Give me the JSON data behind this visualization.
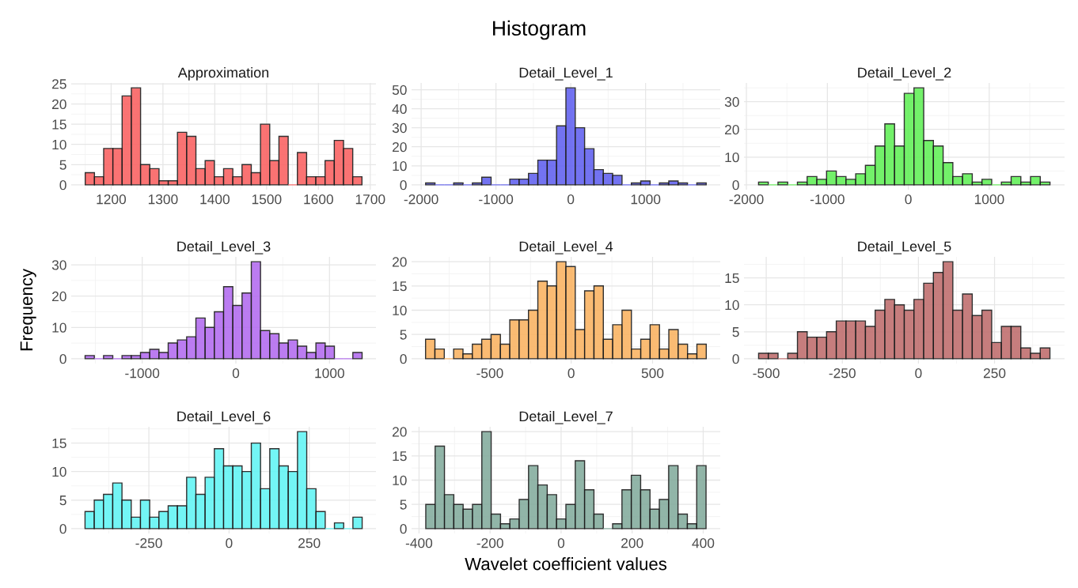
{
  "chart_data": [
    {
      "type": "histogram",
      "title": "Approximation",
      "annotations": [
        "Histogram"
      ],
      "color": "#fa6464",
      "grid": true,
      "legend": false,
      "bins": [
        1150,
        1167.8,
        1185.6,
        1203.4,
        1221.2,
        1239,
        1256.8,
        1274.6,
        1292.4,
        1310.2,
        1328,
        1345.8,
        1363.6,
        1381.4,
        1399.2,
        1417,
        1434.8,
        1452.6,
        1470.4,
        1488.2,
        1506,
        1523.8,
        1541.6,
        1559.4,
        1577.2,
        1595,
        1612.8,
        1630.6,
        1648.4,
        1666.2,
        1684
      ],
      "values": [
        3,
        2,
        9,
        9,
        22,
        24,
        5,
        4,
        1,
        1,
        13,
        12,
        4,
        6,
        2,
        4,
        2,
        5,
        3,
        15,
        6,
        12,
        0,
        8,
        2,
        2,
        6,
        11,
        9,
        2
      ],
      "xlim": [
        1123,
        1711
      ],
      "xticks": [
        1200,
        1300,
        1400,
        1500,
        1600,
        1700
      ],
      "ylim": [
        -1.2,
        25.2
      ],
      "yticks": [
        0,
        5,
        10,
        15,
        20,
        25
      ]
    },
    {
      "type": "histogram",
      "title": "Detail_Level_1",
      "color": "#6464f0",
      "grid": true,
      "legend": false,
      "bins": [
        -1940,
        -1815,
        -1690,
        -1565,
        -1440,
        -1315,
        -1190,
        -1065,
        -940,
        -815,
        -690,
        -565,
        -440,
        -315,
        -190,
        -65,
        60,
        185,
        310,
        435,
        560,
        685,
        810,
        935,
        1060,
        1185,
        1310,
        1435,
        1560,
        1685,
        1810
      ],
      "values": [
        1,
        0,
        0,
        1,
        0,
        1,
        4,
        0,
        0,
        3,
        3,
        6,
        13,
        13,
        31,
        51,
        30,
        19,
        8,
        6,
        5,
        0,
        1,
        2,
        0,
        1,
        2,
        1,
        0,
        1
      ],
      "xlim": [
        -2128,
        1998
      ],
      "xticks": [
        -2000,
        -1000,
        0,
        1000
      ],
      "ylim": [
        -2.55,
        53.55
      ],
      "yticks": [
        0,
        10,
        20,
        30,
        40,
        50
      ]
    },
    {
      "type": "histogram",
      "title": "Detail_Level_2",
      "color": "#64f05a",
      "grid": true,
      "legend": false,
      "bins": [
        -1850,
        -1730,
        -1610,
        -1490,
        -1370,
        -1250,
        -1130,
        -1010,
        -890,
        -770,
        -650,
        -530,
        -410,
        -290,
        -170,
        -50,
        70,
        190,
        310,
        430,
        550,
        670,
        790,
        910,
        1030,
        1150,
        1270,
        1390,
        1510,
        1630,
        1750
      ],
      "values": [
        1,
        0,
        1,
        0,
        1,
        3,
        2,
        5,
        3,
        2,
        4,
        7,
        14,
        22,
        14,
        33,
        35,
        16,
        14,
        8,
        3,
        4,
        1,
        2,
        0,
        1,
        3,
        1,
        3,
        1
      ],
      "xlim": [
        -2030,
        1930
      ],
      "xticks": [
        -2000,
        -1000,
        0,
        1000
      ],
      "ylim": [
        -1.75,
        36.75
      ],
      "yticks": [
        0,
        10,
        20,
        30
      ]
    },
    {
      "type": "histogram",
      "title": "Detail_Level_3",
      "ylabel": "Frequency",
      "color": "#b46ef0",
      "grid": true,
      "legend": false,
      "bins": [
        -1610,
        -1511.4,
        -1412.8,
        -1314.2,
        -1215.6,
        -1117,
        -1018.4,
        -919.8,
        -821.2,
        -722.6,
        -624,
        -525.4,
        -426.8,
        -328.2,
        -229.6,
        -131,
        -32.4,
        66.2,
        164.8,
        263.4,
        362,
        460.6,
        559.2,
        657.8,
        756.4,
        855,
        953.6,
        1052.2,
        1150.8,
        1249.4,
        1348
      ],
      "values": [
        1,
        0,
        1,
        0,
        1,
        1,
        2,
        3,
        2,
        5,
        6,
        7,
        13,
        10,
        15,
        23,
        17,
        21,
        31,
        9,
        8,
        5,
        6,
        4,
        2,
        5,
        4,
        0,
        0,
        2
      ],
      "xlim": [
        -1758,
        1496
      ],
      "xticks": [
        -1000,
        0,
        1000
      ],
      "ylim": [
        -1.55,
        32.55
      ],
      "yticks": [
        0,
        10,
        20,
        30
      ]
    },
    {
      "type": "histogram",
      "title": "Detail_Level_4",
      "color": "#fab464",
      "grid": true,
      "legend": false,
      "bins": [
        -895,
        -837.5,
        -780,
        -722.5,
        -665,
        -607.5,
        -550,
        -492.5,
        -435,
        -377.5,
        -320,
        -262.5,
        -205,
        -147.5,
        -90,
        -32.5,
        25,
        82.5,
        140,
        197.5,
        255,
        312.5,
        370,
        427.5,
        485,
        542.5,
        600,
        657.5,
        715,
        772.5,
        830
      ],
      "values": [
        4,
        2,
        0,
        2,
        1,
        3,
        4,
        5,
        3,
        8,
        8,
        10,
        16,
        15,
        20,
        19,
        6,
        14,
        15,
        4,
        7,
        10,
        2,
        4,
        7,
        2,
        6,
        3,
        1,
        3
      ],
      "xlim": [
        -981,
        916
      ],
      "xticks": [
        -500,
        0,
        500
      ],
      "ylim": [
        -1,
        21
      ],
      "yticks": [
        0,
        5,
        10,
        15,
        20
      ]
    },
    {
      "type": "histogram",
      "title": "Detail_Level_5",
      "color": "#c07070",
      "grid": true,
      "legend": false,
      "bins": [
        -525,
        -493.1,
        -461.2,
        -429.3,
        -397.4,
        -365.5,
        -333.6,
        -301.7,
        -269.8,
        -237.9,
        -206,
        -174.1,
        -142.2,
        -110.3,
        -78.4,
        -46.5,
        -14.6,
        17.3,
        49.2,
        81.1,
        113,
        144.9,
        176.8,
        208.7,
        240.6,
        272.5,
        304.4,
        336.3,
        368.2,
        400.1,
        432
      ],
      "values": [
        1,
        1,
        0,
        1,
        5,
        4,
        4,
        5,
        7,
        7,
        7,
        6,
        9,
        11,
        10,
        9,
        11,
        14,
        16,
        18,
        9,
        12,
        8,
        9,
        3,
        6,
        6,
        2,
        1,
        2
      ],
      "xlim": [
        -573,
        480
      ],
      "xticks": [
        -500,
        -250,
        0,
        250
      ],
      "ylim": [
        -0.9,
        18.9
      ],
      "yticks": [
        0,
        5,
        10,
        15
      ]
    },
    {
      "type": "histogram",
      "title": "Detail_Level_6",
      "color": "#64f5f5",
      "grid": true,
      "legend": false,
      "bins": [
        -449,
        -420.2,
        -391.4,
        -362.6,
        -333.8,
        -305,
        -276.2,
        -247.4,
        -218.6,
        -189.8,
        -161,
        -132.2,
        -103.4,
        -74.6,
        -45.8,
        -17,
        11.8,
        40.6,
        69.4,
        98.2,
        127,
        155.8,
        184.6,
        213.4,
        242.2,
        271,
        299.8,
        328.6,
        357.4,
        386.2,
        415
      ],
      "values": [
        3,
        5,
        6,
        8,
        5,
        2,
        5,
        2,
        3,
        4,
        4,
        9,
        6,
        9,
        14,
        11,
        11,
        10,
        15,
        7,
        14,
        11,
        10,
        17,
        7,
        3,
        0,
        1,
        0,
        2
      ],
      "xlim": [
        -492,
        458
      ],
      "xticks": [
        -250,
        0,
        250
      ],
      "ylim": [
        -0.85,
        17.85
      ],
      "yticks": [
        0,
        5,
        10,
        15
      ]
    },
    {
      "type": "histogram",
      "title": "Detail_Level_7",
      "xlabel": "Wavelet coefficient values",
      "color": "#86ad9f",
      "grid": true,
      "legend": false,
      "bins": [
        -381,
        -354.7,
        -328.4,
        -302.1,
        -275.8,
        -249.5,
        -223.2,
        -196.9,
        -170.6,
        -144.3,
        -118,
        -91.7,
        -65.4,
        -39.1,
        -12.8,
        13.5,
        39.8,
        66.1,
        92.4,
        118.7,
        145,
        171.3,
        197.6,
        223.9,
        250.2,
        276.5,
        302.8,
        329.1,
        355.4,
        381.7,
        408
      ],
      "values": [
        5,
        17,
        7,
        5,
        4,
        5,
        20,
        3,
        1,
        2,
        6,
        13,
        9,
        7,
        2,
        5,
        14,
        8,
        3,
        0,
        1,
        8,
        11,
        8,
        4,
        6,
        13,
        3,
        1,
        13
      ],
      "xlim": [
        -421,
        448
      ],
      "xticks": [
        -400,
        -200,
        0,
        200,
        400
      ],
      "ylim": [
        -1,
        21
      ],
      "yticks": [
        0,
        5,
        10,
        15,
        20
      ]
    }
  ]
}
